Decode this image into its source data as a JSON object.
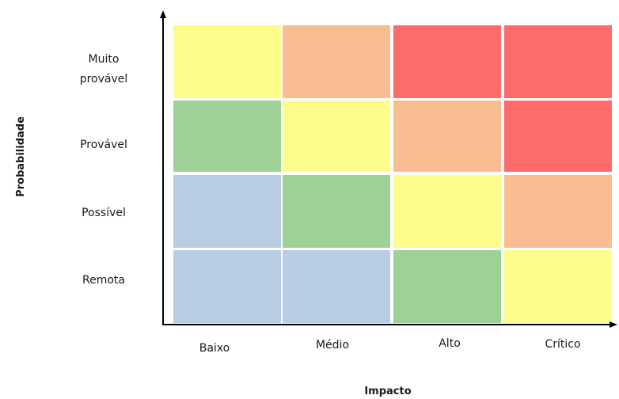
{
  "chart_data": {
    "type": "heatmap",
    "title": "",
    "xlabel": "Impacto",
    "ylabel": "Probabilidade",
    "x_categories": [
      "Baixo",
      "Médio",
      "Alto",
      "Crítico"
    ],
    "y_categories": [
      [
        "Muito",
        "provável"
      ],
      [
        "Provável"
      ],
      [
        "Possível"
      ],
      [
        "Remota"
      ]
    ],
    "cell_colors": [
      [
        "#fdfd8c",
        "#f8bd91",
        "#fe6b6b",
        "#fe6b6b"
      ],
      [
        "#9ed196",
        "#fdfd8c",
        "#f8bd91",
        "#fe6b6b"
      ],
      [
        "#b8cce2",
        "#9ed196",
        "#fdfd8c",
        "#f8bd91"
      ],
      [
        "#b8cce2",
        "#b8cce2",
        "#9ed196",
        "#fdfd8c"
      ]
    ],
    "grid": false,
    "legend": "none"
  },
  "colors": {
    "axis": "#000000",
    "cell_border": "#ffffff"
  }
}
